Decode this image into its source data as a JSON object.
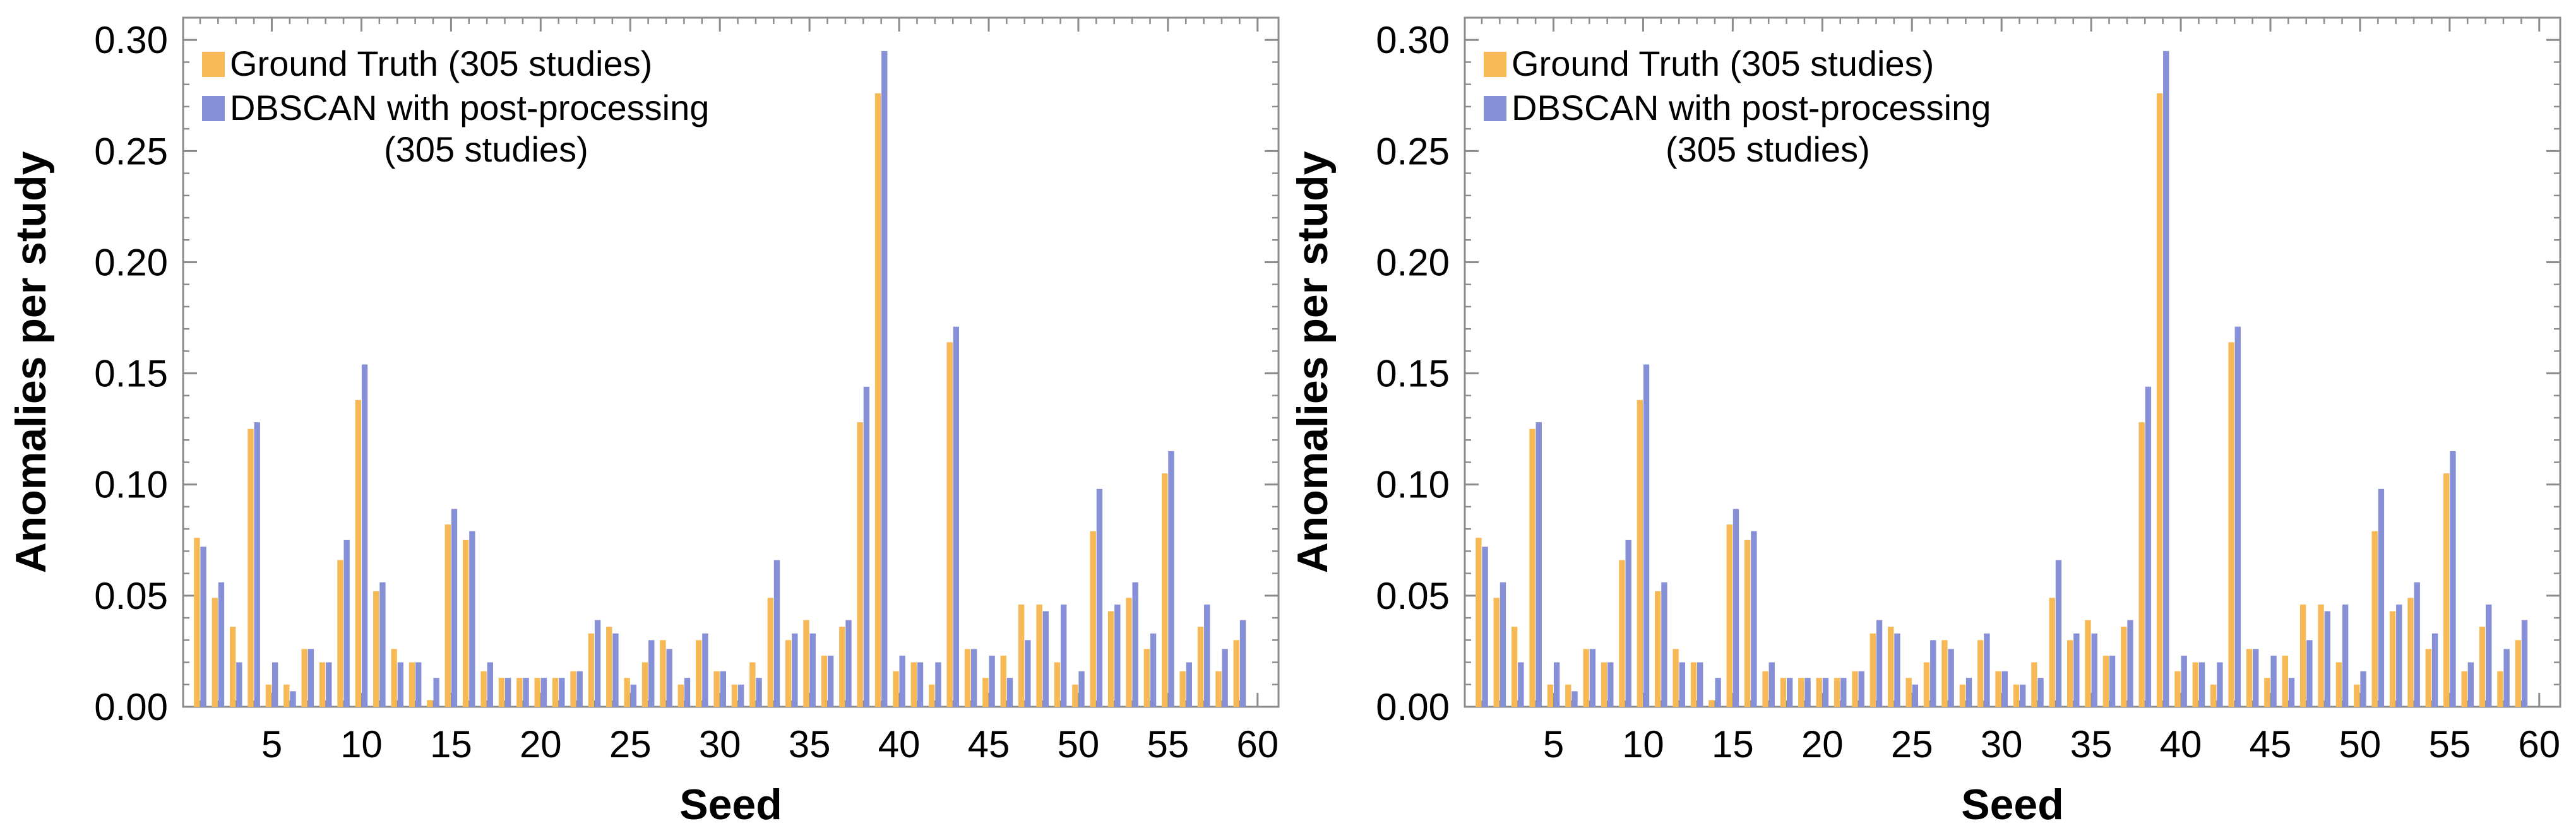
{
  "colors": {
    "ground_truth": "#f6b956",
    "dbscan": "#8590d6",
    "frame": "#8c8c8c"
  },
  "chart_data": [
    {
      "type": "bar",
      "xlabel": "Seed",
      "ylabel": "Anomalies per study",
      "ylim": [
        0,
        0.31
      ],
      "yticks": [
        "0.00",
        "0.05",
        "0.10",
        "0.15",
        "0.20",
        "0.25",
        "0.30"
      ],
      "xticks": [
        "5",
        "10",
        "15",
        "20",
        "25",
        "30",
        "35",
        "40",
        "45",
        "50",
        "55",
        "60"
      ],
      "legend_position": "top-left",
      "legend_extra": "(305 studies)",
      "categories": [
        1,
        2,
        3,
        4,
        5,
        6,
        7,
        8,
        9,
        10,
        11,
        12,
        13,
        14,
        15,
        16,
        17,
        18,
        19,
        20,
        21,
        22,
        23,
        24,
        25,
        26,
        27,
        28,
        29,
        30,
        31,
        32,
        33,
        34,
        35,
        36,
        37,
        38,
        39,
        40,
        41,
        42,
        43,
        44,
        45,
        46,
        47,
        48,
        49,
        50,
        51,
        52,
        53,
        54,
        55,
        56,
        57,
        58,
        59,
        60
      ],
      "series": [
        {
          "name": "Ground Truth (305 studies)",
          "values": [
            0.076,
            0.049,
            0.036,
            0.125,
            0.01,
            0.01,
            0.026,
            0.02,
            0.066,
            0.138,
            0.052,
            0.026,
            0.02,
            0.003,
            0.082,
            0.075,
            0.016,
            0.013,
            0.013,
            0.013,
            0.013,
            0.016,
            0.033,
            0.036,
            0.013,
            0.02,
            0.03,
            0.01,
            0.03,
            0.016,
            0.01,
            0.02,
            0.049,
            0.03,
            0.039,
            0.023,
            0.036,
            0.128,
            0.276,
            0.016,
            0.02,
            0.01,
            0.164,
            0.026,
            0.013,
            0.023,
            0.046,
            0.046,
            0.02,
            0.01,
            0.079,
            0.043,
            0.049,
            0.026,
            0.105,
            0.016,
            0.036,
            0.016,
            0.03,
            0.0
          ]
        },
        {
          "name": "DBSCAN with post-processing",
          "values": [
            0.072,
            0.056,
            0.02,
            0.128,
            0.02,
            0.007,
            0.026,
            0.02,
            0.075,
            0.154,
            0.056,
            0.02,
            0.02,
            0.013,
            0.089,
            0.079,
            0.02,
            0.013,
            0.013,
            0.013,
            0.013,
            0.016,
            0.039,
            0.033,
            0.01,
            0.03,
            0.026,
            0.013,
            0.033,
            0.016,
            0.01,
            0.013,
            0.066,
            0.033,
            0.033,
            0.023,
            0.039,
            0.144,
            0.295,
            0.023,
            0.02,
            0.02,
            0.171,
            0.026,
            0.023,
            0.013,
            0.03,
            0.043,
            0.046,
            0.016,
            0.098,
            0.046,
            0.056,
            0.033,
            0.115,
            0.02,
            0.046,
            0.026,
            0.039,
            0.0
          ]
        }
      ]
    },
    {
      "type": "bar",
      "xlabel": "Seed",
      "ylabel": "Anomalies per study",
      "ylim": [
        0,
        0.31
      ],
      "yticks": [
        "0.00",
        "0.05",
        "0.10",
        "0.15",
        "0.20",
        "0.25",
        "0.30"
      ],
      "xticks": [
        "5",
        "10",
        "15",
        "20",
        "25",
        "30",
        "35",
        "40",
        "45",
        "50",
        "55",
        "60"
      ],
      "legend_position": "top-left",
      "legend_extra": "(305 studies)",
      "categories": [
        1,
        2,
        3,
        4,
        5,
        6,
        7,
        8,
        9,
        10,
        11,
        12,
        13,
        14,
        15,
        16,
        17,
        18,
        19,
        20,
        21,
        22,
        23,
        24,
        25,
        26,
        27,
        28,
        29,
        30,
        31,
        32,
        33,
        34,
        35,
        36,
        37,
        38,
        39,
        40,
        41,
        42,
        43,
        44,
        45,
        46,
        47,
        48,
        49,
        50,
        51,
        52,
        53,
        54,
        55,
        56,
        57,
        58,
        59,
        60
      ],
      "series": [
        {
          "name": "Ground Truth (305 studies)",
          "values": [
            0.076,
            0.049,
            0.036,
            0.125,
            0.01,
            0.01,
            0.026,
            0.02,
            0.066,
            0.138,
            0.052,
            0.026,
            0.02,
            0.003,
            0.082,
            0.075,
            0.016,
            0.013,
            0.013,
            0.013,
            0.013,
            0.016,
            0.033,
            0.036,
            0.013,
            0.02,
            0.03,
            0.01,
            0.03,
            0.016,
            0.01,
            0.02,
            0.049,
            0.03,
            0.039,
            0.023,
            0.036,
            0.128,
            0.276,
            0.016,
            0.02,
            0.01,
            0.164,
            0.026,
            0.013,
            0.023,
            0.046,
            0.046,
            0.02,
            0.01,
            0.079,
            0.043,
            0.049,
            0.026,
            0.105,
            0.016,
            0.036,
            0.016,
            0.03,
            0.0
          ]
        },
        {
          "name": "DBSCAN with post-processing",
          "values": [
            0.072,
            0.056,
            0.02,
            0.128,
            0.02,
            0.007,
            0.026,
            0.02,
            0.075,
            0.154,
            0.056,
            0.02,
            0.02,
            0.013,
            0.089,
            0.079,
            0.02,
            0.013,
            0.013,
            0.013,
            0.013,
            0.016,
            0.039,
            0.033,
            0.01,
            0.03,
            0.026,
            0.013,
            0.033,
            0.016,
            0.01,
            0.013,
            0.066,
            0.033,
            0.033,
            0.023,
            0.039,
            0.144,
            0.295,
            0.023,
            0.02,
            0.02,
            0.171,
            0.026,
            0.023,
            0.013,
            0.03,
            0.043,
            0.046,
            0.016,
            0.098,
            0.046,
            0.056,
            0.033,
            0.115,
            0.02,
            0.046,
            0.026,
            0.039,
            0.0
          ]
        }
      ]
    }
  ]
}
